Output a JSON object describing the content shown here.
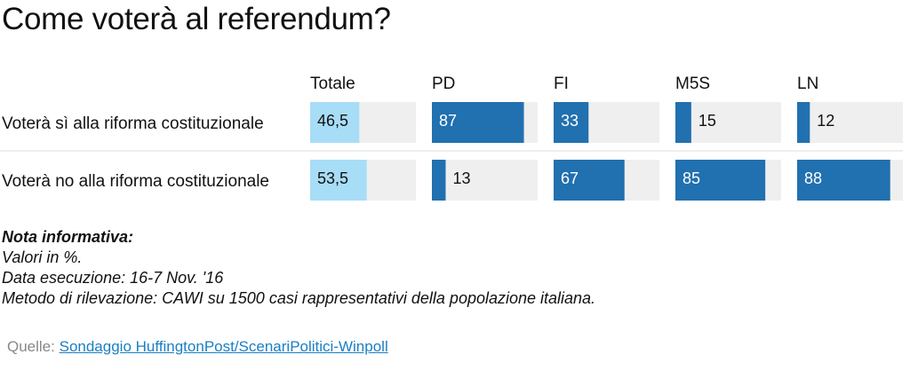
{
  "title": "Come voterà al referendum?",
  "colors": {
    "totale_bar": "#a8ddf7",
    "party_bar": "#2170b0",
    "track": "#efefef",
    "text_dark": "#111111",
    "text_light": "#ffffff"
  },
  "chart_data": {
    "type": "bar",
    "title": "Come voterà al referendum?",
    "categories": [
      "Totale",
      "PD",
      "FI",
      "M5S",
      "LN"
    ],
    "series": [
      {
        "name": "Voterà sì alla riforma costituzionale",
        "values": [
          46.5,
          87,
          33,
          15,
          12
        ]
      },
      {
        "name": "Voterà no alla riforma costituzionale",
        "values": [
          53.5,
          13,
          67,
          85,
          88
        ]
      }
    ],
    "value_labels": [
      [
        "46,5",
        "87",
        "33",
        "15",
        "12"
      ],
      [
        "53,5",
        "13",
        "67",
        "85",
        "88"
      ]
    ],
    "xlim": [
      0,
      100
    ],
    "grid": false,
    "legend": "none"
  },
  "notes": {
    "heading": "Nota informativa:",
    "lines": [
      "Valori in %.",
      "Data esecuzione: 16-7 Nov. '16",
      "Metodo di rilevazione: CAWI su 1500 casi rappresentativi della popolazione italiana."
    ]
  },
  "source": {
    "label": "Quelle:",
    "link_text": "Sondaggio HuffingtonPost/ScenariPolitici-Winpoll"
  }
}
